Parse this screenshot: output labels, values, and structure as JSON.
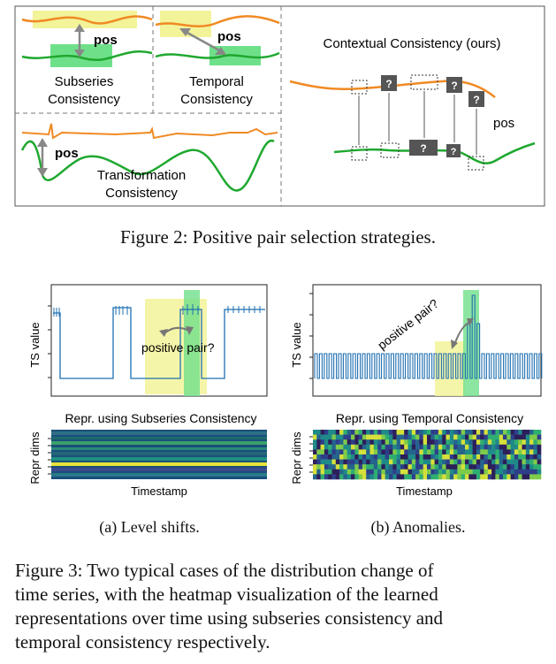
{
  "figure2": {
    "panels": {
      "subseries": {
        "pos_label": "pos",
        "title_line1": "Subseries",
        "title_line2": "Consistency"
      },
      "temporal": {
        "pos_label": "pos",
        "title_line1": "Temporal",
        "title_line2": "Consistency"
      },
      "transformation": {
        "pos_label": "pos",
        "title_line1": "Transformation",
        "title_line2": "Consistency"
      },
      "contextual": {
        "title": "Contextual Consistency (ours)",
        "pos_label": "pos",
        "unknown_mark": "?"
      }
    },
    "caption": "Figure 2: Positive pair selection strategies."
  },
  "figure3": {
    "panel_a": {
      "ylabel": "TS value",
      "annotation": "positive pair?",
      "repr_title": "Repr. using Subseries Consistency",
      "heat_ylabel": "Repr dims",
      "heat_xlabel": "Timestamp",
      "subcaption": "(a) Level shifts."
    },
    "panel_b": {
      "ylabel": "TS value",
      "annotation": "positive pair?",
      "repr_title": "Repr. using Temporal Consistency",
      "heat_ylabel": "Repr dims",
      "heat_xlabel": "Timestamp",
      "subcaption": "(b) Anomalies."
    },
    "caption_lines": [
      "Figure 3: Two typical cases of the distribution change of",
      "time series, with the heatmap visualization of the learned",
      "representations over time using subseries consistency and",
      "temporal consistency respectively."
    ]
  },
  "colors": {
    "orange": "#f08a24",
    "green": "#1fa82f",
    "highlight_yellow": "#f3f39a",
    "highlight_green": "#6fe08a",
    "ts_blue": "#1f6fb0",
    "dark_box": "#555555"
  }
}
